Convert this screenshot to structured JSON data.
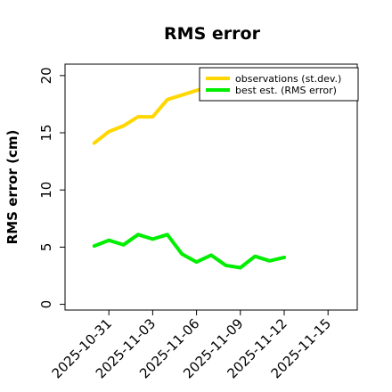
{
  "chart_data": {
    "type": "line",
    "title": "RMS error",
    "xlabel": "",
    "ylabel": "RMS error (cm)",
    "ylim": [
      -0.5,
      21
    ],
    "xlim": [
      "2025-10-28",
      "2025-11-17"
    ],
    "yticks": [
      0,
      5,
      10,
      15,
      20
    ],
    "xticks": [
      "2025-10-31",
      "2025-11-03",
      "2025-11-06",
      "2025-11-09",
      "2025-11-12",
      "2025-11-15"
    ],
    "highlighted_tick": "2025-11-06",
    "highlight_color": "#228b22",
    "grid": false,
    "legend_position": "top-right",
    "series": [
      {
        "name": "observations (st.dev.)",
        "color": "#ffd700",
        "x": [
          "2025-10-30",
          "2025-10-31",
          "2025-11-01",
          "2025-11-02",
          "2025-11-03",
          "2025-11-04",
          "2025-11-05",
          "2025-11-06",
          "2025-11-07"
        ],
        "values": [
          14.1,
          15.1,
          15.6,
          16.4,
          16.4,
          17.9,
          18.3,
          18.7,
          19.1
        ]
      },
      {
        "name": "best est. (RMS error)",
        "color": "#00ee00",
        "x": [
          "2025-10-30",
          "2025-10-31",
          "2025-11-01",
          "2025-11-02",
          "2025-11-03",
          "2025-11-04",
          "2025-11-05",
          "2025-11-06",
          "2025-11-07",
          "2025-11-08",
          "2025-11-09",
          "2025-11-10",
          "2025-11-11",
          "2025-11-12"
        ],
        "values": [
          5.1,
          5.6,
          5.2,
          6.1,
          5.7,
          6.1,
          4.4,
          3.7,
          4.3,
          3.4,
          3.2,
          4.2,
          3.8,
          4.1
        ]
      }
    ]
  }
}
